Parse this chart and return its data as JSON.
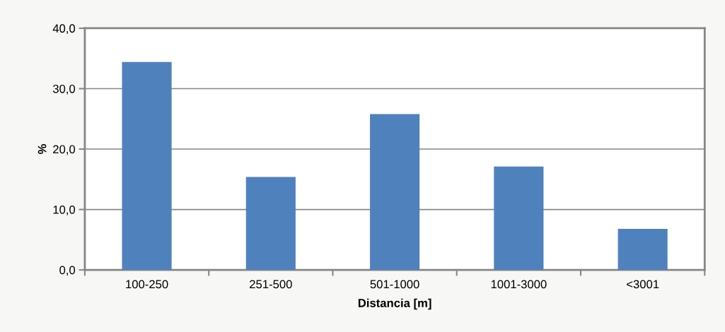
{
  "chart_data": {
    "type": "bar",
    "xlabel": "Distancia [m]",
    "ylabel": "%",
    "categories": [
      "100-250",
      "251-500",
      "501-1000",
      "1001-3000",
      "<3001"
    ],
    "values": [
      34.4,
      15.4,
      25.8,
      17.1,
      6.8
    ],
    "color": "#4f81bd",
    "ylim": [
      0,
      40
    ],
    "yticks": [
      {
        "value": 0,
        "label": "0,0"
      },
      {
        "value": 10,
        "label": "10,0"
      },
      {
        "value": 20,
        "label": "20,0"
      },
      {
        "value": 30,
        "label": "30,0"
      },
      {
        "value": 40,
        "label": "40,0"
      }
    ],
    "grid": "y",
    "legend": false
  }
}
